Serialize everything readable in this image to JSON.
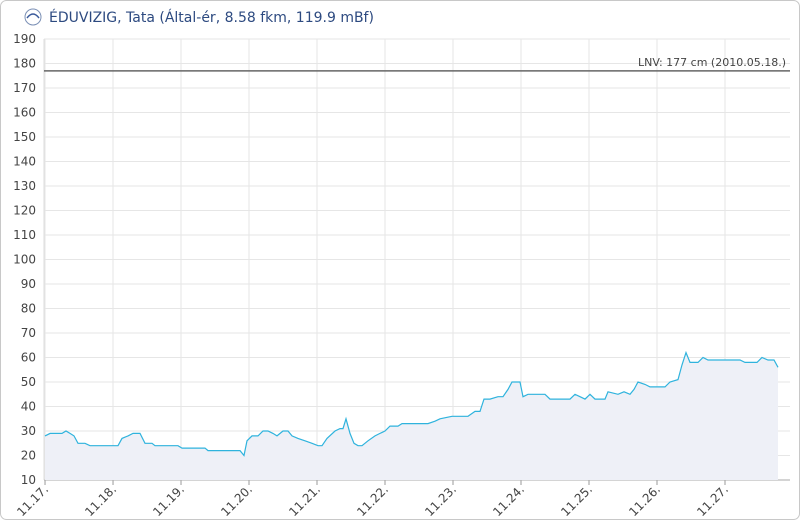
{
  "chart_data": {
    "type": "line",
    "title": "ÉDUVIZIG, Tata (Által-ér, 8.58 fkm, 119.9 mBf)",
    "x": [
      0,
      0.074,
      0.25,
      0.309,
      0.368,
      0.426,
      0.485,
      0.588,
      0.662,
      0.956,
      1.074,
      1.132,
      1.221,
      1.294,
      1.397,
      1.471,
      1.574,
      1.618,
      1.956,
      2.015,
      2.353,
      2.397,
      2.868,
      2.926,
      2.971,
      3.044,
      3.132,
      3.206,
      3.279,
      3.353,
      3.412,
      3.5,
      3.574,
      3.632,
      3.721,
      3.824,
      3.926,
      4.015,
      4.074,
      4.147,
      4.265,
      4.338,
      4.382,
      4.426,
      4.485,
      4.544,
      4.603,
      4.662,
      4.75,
      4.853,
      4.926,
      5,
      5.074,
      5.191,
      5.25,
      5.632,
      5.735,
      5.809,
      5.985,
      6.221,
      6.324,
      6.397,
      6.456,
      6.544,
      6.662,
      6.735,
      6.809,
      6.868,
      6.985,
      7.029,
      7.103,
      7.353,
      7.426,
      7.721,
      7.794,
      7.868,
      7.941,
      8.015,
      8.088,
      8.235,
      8.279,
      8.426,
      8.515,
      8.603,
      8.662,
      8.721,
      8.824,
      8.897,
      9.118,
      9.191,
      9.309,
      9.368,
      9.426,
      9.485,
      9.603,
      9.676,
      9.75,
      10.221,
      10.294,
      10.471,
      10.544,
      10.632,
      10.721,
      10.779
    ],
    "series": [
      {
        "color": "#2fb3dd",
        "values": [
          28,
          29,
          29,
          30,
          29,
          28,
          25,
          25,
          24,
          24,
          24,
          27,
          28,
          29,
          29,
          25,
          25,
          24,
          24,
          23,
          23,
          22,
          22,
          20,
          26,
          28,
          28,
          30,
          30,
          29,
          28,
          30,
          30,
          28,
          27,
          26,
          25,
          24,
          24,
          27,
          30,
          31,
          31,
          35,
          29,
          25,
          24,
          24,
          26,
          28,
          29,
          30,
          32,
          32,
          33,
          33,
          34,
          35,
          36,
          36,
          38,
          38,
          43,
          43,
          44,
          44,
          47,
          50,
          50,
          44,
          45,
          45,
          43,
          43,
          45,
          44,
          43,
          45,
          43,
          43,
          46,
          45,
          46,
          45,
          47,
          50,
          49,
          48,
          48,
          50,
          51,
          57,
          62,
          58,
          58,
          60,
          59,
          59,
          58,
          58,
          60,
          59,
          59,
          56
        ]
      }
    ],
    "xlim": [
      -0.015,
      10.956
    ],
    "xticks": [
      {
        "value": 0,
        "label": "11.17."
      },
      {
        "value": 1,
        "label": "11.18."
      },
      {
        "value": 2,
        "label": "11.19."
      },
      {
        "value": 3,
        "label": "11.20."
      },
      {
        "value": 4,
        "label": "11.21."
      },
      {
        "value": 5,
        "label": "11.22."
      },
      {
        "value": 6,
        "label": "11.23."
      },
      {
        "value": 7,
        "label": "11.24."
      },
      {
        "value": 8,
        "label": "11.25."
      },
      {
        "value": 9,
        "label": "11.26."
      },
      {
        "value": 10,
        "label": "11.27."
      }
    ],
    "ylim": [
      10,
      190
    ],
    "yticks": [
      10,
      20,
      30,
      40,
      50,
      60,
      70,
      80,
      90,
      100,
      110,
      120,
      130,
      140,
      150,
      160,
      170,
      180,
      190
    ],
    "grid": true,
    "reference_line": {
      "value": 177,
      "label": "LNV: 177 cm (2010.05.18.)"
    }
  }
}
